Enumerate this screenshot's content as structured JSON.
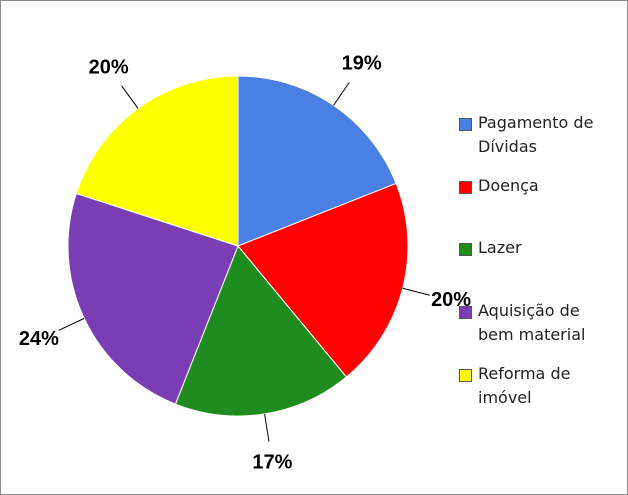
{
  "chart_data": {
    "type": "pie",
    "categories": [
      "Pagamento de Dívidas",
      "Doença",
      "Lazer",
      "Aquisição de bem material",
      "Reforma de imóvel"
    ],
    "values": [
      19,
      20,
      17,
      24,
      20
    ],
    "value_labels": [
      "19%",
      "20%",
      "17%",
      "24%",
      "20%"
    ],
    "colors": [
      "#4a7fe3",
      "#ff0000",
      "#1e8c1e",
      "#7a3db3",
      "#ffff00"
    ],
    "legend": "right"
  }
}
